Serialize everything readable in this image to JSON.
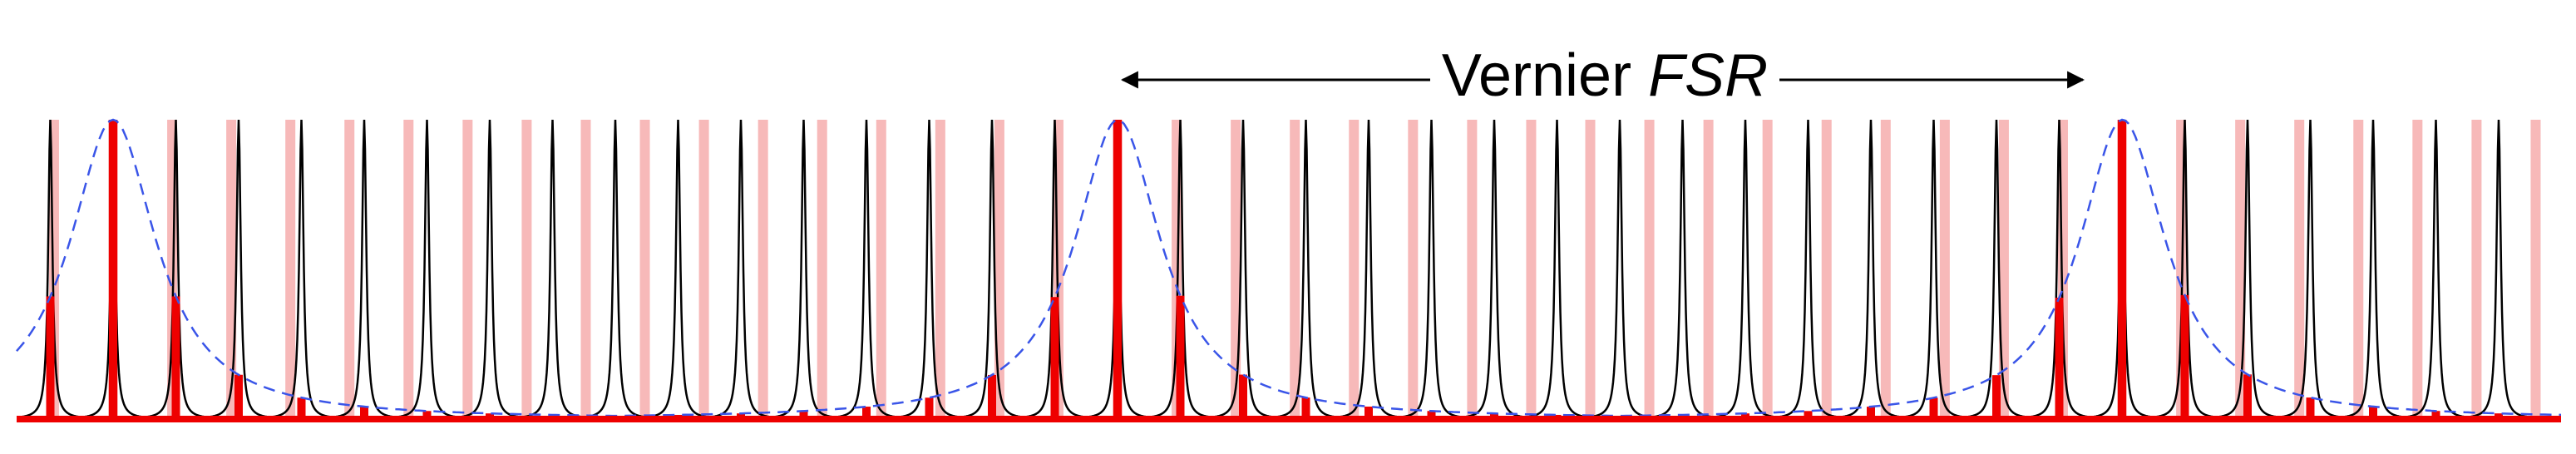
{
  "label": {
    "text": "Vernier",
    "italic": "FSR"
  }
}
